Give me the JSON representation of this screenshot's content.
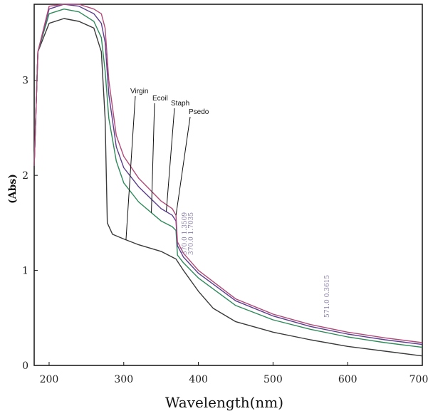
{
  "chart_data": {
    "type": "line",
    "title": "",
    "xlabel": "Wavelength(nm)",
    "ylabel": "(Abs)",
    "xlim": [
      180,
      700
    ],
    "ylim": [
      0,
      3.8
    ],
    "x_ticks": [
      200,
      300,
      400,
      500,
      600,
      700
    ],
    "y_ticks": [
      0,
      1,
      2,
      3
    ],
    "grid": false,
    "legend": "none",
    "annotations": [
      "Virgin",
      "Ecoil",
      "Staph",
      "Psedo"
    ],
    "faint_annotations": [
      "370.0 1.3509",
      "370.0 1.7035",
      "571.0 0.3615"
    ],
    "series": [
      {
        "name": "Virgin",
        "color": "#3a3a3a",
        "x": [
          180,
          185,
          200,
          220,
          240,
          260,
          270,
          275,
          278,
          285,
          300,
          320,
          350,
          370,
          380,
          400,
          420,
          450,
          500,
          550,
          600,
          650,
          700
        ],
        "y": [
          2.1,
          3.3,
          3.6,
          3.65,
          3.62,
          3.55,
          3.3,
          2.6,
          1.5,
          1.38,
          1.33,
          1.27,
          1.2,
          1.12,
          1.0,
          0.78,
          0.6,
          0.46,
          0.35,
          0.27,
          0.2,
          0.15,
          0.1
        ]
      },
      {
        "name": "Ecoil",
        "color": "#2e8a5a",
        "x": [
          180,
          185,
          200,
          220,
          240,
          260,
          270,
          275,
          280,
          290,
          300,
          320,
          350,
          365,
          370,
          372,
          380,
          400,
          450,
          500,
          550,
          600,
          650,
          700
        ],
        "y": [
          2.1,
          3.3,
          3.7,
          3.75,
          3.72,
          3.62,
          3.45,
          3.1,
          2.6,
          2.15,
          1.92,
          1.72,
          1.52,
          1.46,
          1.42,
          1.16,
          1.08,
          0.92,
          0.63,
          0.48,
          0.38,
          0.3,
          0.24,
          0.19
        ]
      },
      {
        "name": "Staph",
        "color": "#5a3e8e",
        "x": [
          180,
          185,
          200,
          220,
          240,
          260,
          270,
          275,
          280,
          290,
          300,
          320,
          350,
          365,
          370,
          372,
          380,
          400,
          450,
          500,
          550,
          600,
          650,
          700
        ],
        "y": [
          2.1,
          3.3,
          3.75,
          3.8,
          3.78,
          3.7,
          3.6,
          3.4,
          2.85,
          2.3,
          2.08,
          1.88,
          1.65,
          1.58,
          1.52,
          1.26,
          1.14,
          0.97,
          0.68,
          0.52,
          0.41,
          0.33,
          0.27,
          0.22
        ]
      },
      {
        "name": "Psedo",
        "color": "#b04a78",
        "x": [
          180,
          185,
          200,
          220,
          240,
          260,
          270,
          275,
          280,
          290,
          300,
          320,
          350,
          365,
          370,
          372,
          380,
          400,
          450,
          500,
          550,
          600,
          650,
          700
        ],
        "y": [
          2.1,
          3.3,
          3.78,
          3.82,
          3.8,
          3.75,
          3.7,
          3.55,
          3.0,
          2.42,
          2.2,
          1.97,
          1.73,
          1.65,
          1.58,
          1.3,
          1.18,
          1.0,
          0.7,
          0.54,
          0.43,
          0.35,
          0.29,
          0.24
        ]
      }
    ]
  }
}
